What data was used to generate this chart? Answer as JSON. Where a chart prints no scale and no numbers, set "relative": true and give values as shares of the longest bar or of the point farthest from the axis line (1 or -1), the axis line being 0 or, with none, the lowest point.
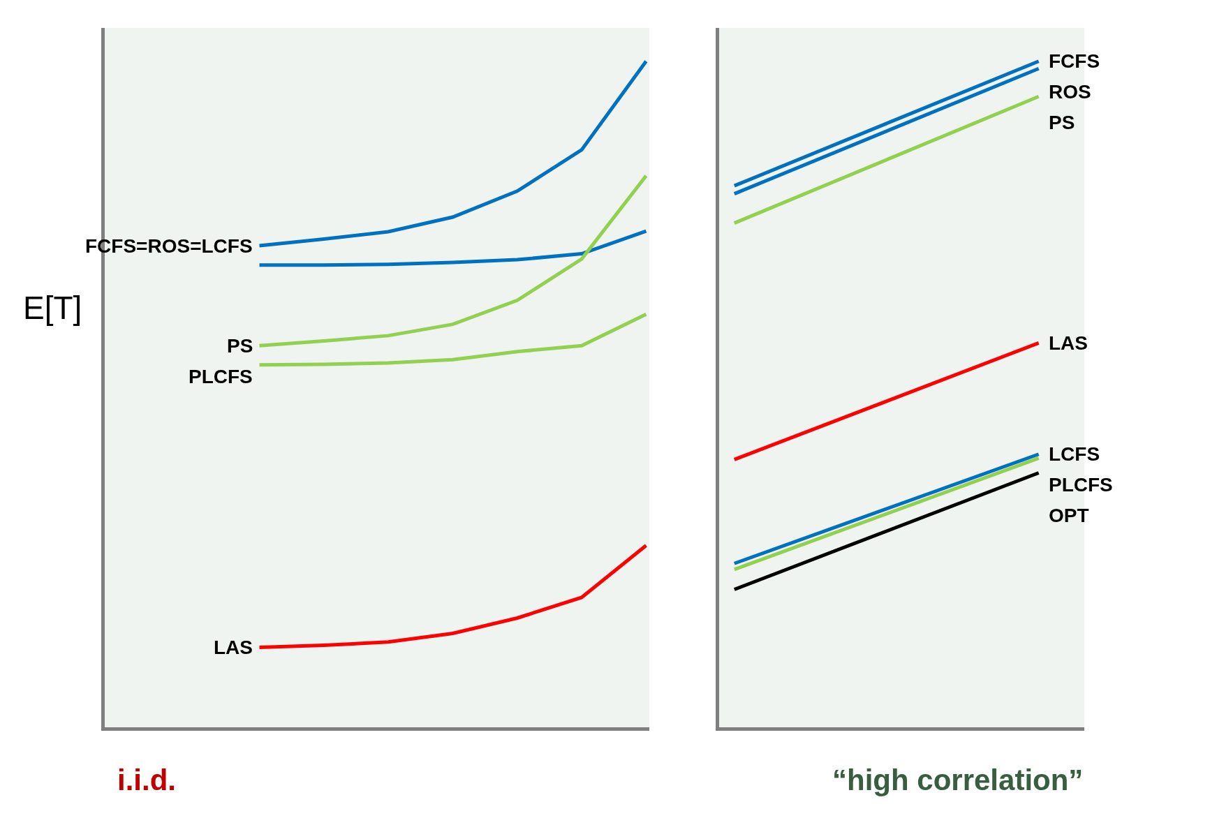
{
  "chart_data": [
    {
      "type": "line",
      "relative": true,
      "ylabel": "E[T]",
      "xlabel": "i.i.d.",
      "categories": [
        null,
        null,
        null,
        null,
        null,
        null,
        null
      ],
      "legend": false,
      "grid": false,
      "series": [
        {
          "name": "FCFS=ROS=LCFS",
          "color": "#0070c0",
          "values": [
            0.723,
            0.733,
            0.744,
            0.766,
            0.805,
            0.867,
            1
          ]
        },
        {
          "color": "#0070c0",
          "values": [
            0.694,
            0.694,
            0.695,
            0.698,
            0.702,
            0.711,
            0.745
          ]
        },
        {
          "name": "PS",
          "color": "#92d050",
          "values": [
            0.573,
            0.58,
            0.588,
            0.605,
            0.641,
            0.703,
            0.828
          ]
        },
        {
          "name": "PLCFS",
          "color": "#92d050",
          "values": [
            0.544,
            0.545,
            0.547,
            0.552,
            0.564,
            0.573,
            0.62
          ]
        },
        {
          "name": "LAS",
          "color": "#ff0000",
          "values": [
            0.12,
            0.123,
            0.128,
            0.141,
            0.164,
            0.195,
            0.273
          ]
        }
      ]
    },
    {
      "type": "line",
      "relative": true,
      "xlabel": "“high correlation”",
      "categories": [
        null,
        null
      ],
      "legend": false,
      "grid": false,
      "series": [
        {
          "name": "FCFS",
          "color": "#0070c0",
          "values": [
            0.813,
            1
          ]
        },
        {
          "name": "ROS",
          "color": "#0070c0",
          "values": [
            0.801,
            0.989
          ]
        },
        {
          "name": "PS",
          "color": "#92d050",
          "values": [
            0.757,
            0.947
          ]
        },
        {
          "name": "LAS",
          "color": "#ff0000",
          "values": [
            0.402,
            0.577
          ]
        },
        {
          "name": "PLCFS",
          "color": "#92d050",
          "values": [
            0.237,
            0.404
          ]
        },
        {
          "name": "LCFS",
          "color": "#0070c0",
          "values": [
            0.246,
            0.41
          ]
        },
        {
          "name": "OPT",
          "color": "#000000",
          "values": [
            0.207,
            0.382
          ]
        }
      ]
    }
  ]
}
